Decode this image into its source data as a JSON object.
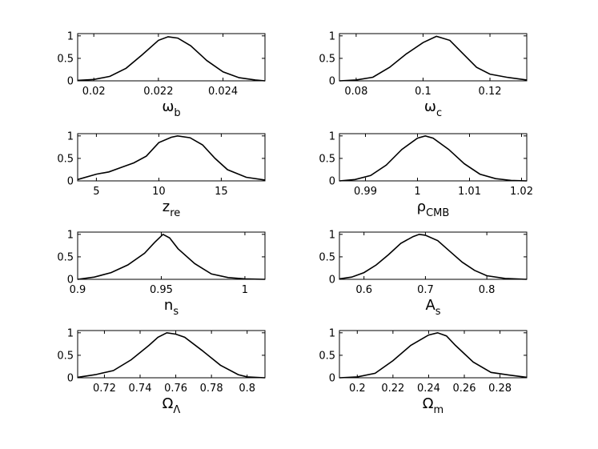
{
  "chart_data": [
    {
      "type": "line",
      "xlabel": "ω",
      "xlabel_sub": "b",
      "xlim": [
        0.0195,
        0.0253
      ],
      "ylim": [
        0,
        1.05
      ],
      "xticks": [
        0.02,
        0.022,
        0.024
      ],
      "xtick_labels": [
        "0.02",
        "0.022",
        "0.024"
      ],
      "yticks": [
        0,
        0.5,
        1
      ],
      "ytick_labels": [
        "0",
        "0.5",
        "1"
      ],
      "x": [
        0.0195,
        0.02,
        0.0205,
        0.021,
        0.0215,
        0.022,
        0.0223,
        0.0226,
        0.023,
        0.0235,
        0.024,
        0.0245,
        0.025,
        0.0253
      ],
      "y": [
        0.01,
        0.03,
        0.1,
        0.28,
        0.58,
        0.9,
        0.98,
        0.95,
        0.78,
        0.45,
        0.2,
        0.07,
        0.02,
        0.0
      ]
    },
    {
      "type": "line",
      "xlabel": "ω",
      "xlabel_sub": "c",
      "xlim": [
        0.075,
        0.131
      ],
      "ylim": [
        0,
        1.05
      ],
      "xticks": [
        0.08,
        0.1,
        0.12
      ],
      "xtick_labels": [
        "0.08",
        "0.1",
        "0.12"
      ],
      "yticks": [
        0,
        0.5,
        1
      ],
      "ytick_labels": [
        "0",
        "0.5",
        "1"
      ],
      "x": [
        0.075,
        0.08,
        0.085,
        0.09,
        0.095,
        0.1,
        0.104,
        0.108,
        0.112,
        0.116,
        0.12,
        0.125,
        0.131
      ],
      "y": [
        0.0,
        0.02,
        0.08,
        0.3,
        0.6,
        0.85,
        0.99,
        0.9,
        0.6,
        0.3,
        0.15,
        0.08,
        0.02
      ]
    },
    {
      "type": "line",
      "xlabel": "z",
      "xlabel_sub": "re",
      "xlim": [
        3.5,
        18.5
      ],
      "ylim": [
        0,
        1.05
      ],
      "xticks": [
        5,
        10,
        15
      ],
      "xtick_labels": [
        "5",
        "10",
        "15"
      ],
      "yticks": [
        0,
        0.5,
        1
      ],
      "ytick_labels": [
        "0",
        "0.5",
        "1"
      ],
      "x": [
        3.5,
        5,
        6,
        7,
        8,
        9,
        10,
        11,
        11.5,
        12.5,
        13.5,
        14.5,
        15.5,
        17,
        18.5
      ],
      "y": [
        0.03,
        0.15,
        0.2,
        0.3,
        0.4,
        0.55,
        0.85,
        0.97,
        1.0,
        0.96,
        0.8,
        0.5,
        0.25,
        0.08,
        0.02
      ]
    },
    {
      "type": "line",
      "xlabel": "ρ",
      "xlabel_sub": "CMB",
      "xlim": [
        0.985,
        1.021
      ],
      "ylim": [
        0,
        1.05
      ],
      "xticks": [
        0.99,
        1,
        1.01,
        1.02
      ],
      "xtick_labels": [
        "0.99",
        "1",
        "1.01",
        "1.02"
      ],
      "yticks": [
        0,
        0.5,
        1
      ],
      "ytick_labels": [
        "0",
        "0.5",
        "1"
      ],
      "x": [
        0.985,
        0.988,
        0.991,
        0.994,
        0.997,
        1.0,
        1.0015,
        1.003,
        1.006,
        1.009,
        1.012,
        1.015,
        1.018,
        1.021
      ],
      "y": [
        0.0,
        0.03,
        0.12,
        0.35,
        0.7,
        0.95,
        1.0,
        0.95,
        0.7,
        0.38,
        0.15,
        0.05,
        0.01,
        0.0
      ]
    },
    {
      "type": "line",
      "xlabel": "n",
      "xlabel_sub": "s",
      "xlim": [
        0.9,
        1.012
      ],
      "ylim": [
        0,
        1.05
      ],
      "xticks": [
        0.9,
        0.95,
        1
      ],
      "xtick_labels": [
        "0.9",
        "0.95",
        "1"
      ],
      "yticks": [
        0,
        0.5,
        1
      ],
      "ytick_labels": [
        "0",
        "0.5",
        "1"
      ],
      "x": [
        0.9,
        0.91,
        0.92,
        0.93,
        0.94,
        0.946,
        0.951,
        0.955,
        0.96,
        0.97,
        0.98,
        0.99,
        1.0,
        1.012
      ],
      "y": [
        0.0,
        0.05,
        0.15,
        0.32,
        0.58,
        0.82,
        1.0,
        0.92,
        0.68,
        0.35,
        0.12,
        0.04,
        0.01,
        0.0
      ]
    },
    {
      "type": "line",
      "xlabel": "A",
      "xlabel_sub": "s",
      "xlim": [
        0.56,
        0.865
      ],
      "ylim": [
        0,
        1.05
      ],
      "xticks": [
        0.6,
        0.7,
        0.8
      ],
      "xtick_labels": [
        "0.6",
        "0.7",
        "0.8"
      ],
      "yticks": [
        0,
        0.5,
        1
      ],
      "ytick_labels": [
        "0",
        "0.5",
        "1"
      ],
      "x": [
        0.56,
        0.58,
        0.6,
        0.62,
        0.64,
        0.66,
        0.68,
        0.69,
        0.7,
        0.72,
        0.74,
        0.76,
        0.78,
        0.8,
        0.83,
        0.865
      ],
      "y": [
        0.01,
        0.05,
        0.15,
        0.32,
        0.55,
        0.8,
        0.95,
        1.0,
        0.98,
        0.86,
        0.62,
        0.38,
        0.2,
        0.08,
        0.02,
        0.0
      ]
    },
    {
      "type": "line",
      "xlabel": "Ω",
      "xlabel_sub": "Λ",
      "xlim": [
        0.705,
        0.81
      ],
      "ylim": [
        0,
        1.05
      ],
      "xticks": [
        0.72,
        0.74,
        0.76,
        0.78,
        0.8
      ],
      "xtick_labels": [
        "0.72",
        "0.74",
        "0.76",
        "0.78",
        "0.8"
      ],
      "yticks": [
        0,
        0.5,
        1
      ],
      "ytick_labels": [
        "0",
        "0.5",
        "1"
      ],
      "x": [
        0.705,
        0.715,
        0.725,
        0.735,
        0.745,
        0.75,
        0.755,
        0.76,
        0.765,
        0.775,
        0.785,
        0.795,
        0.8,
        0.81
      ],
      "y": [
        0.01,
        0.07,
        0.16,
        0.4,
        0.72,
        0.9,
        1.0,
        0.97,
        0.9,
        0.6,
        0.28,
        0.07,
        0.02,
        0.0
      ]
    },
    {
      "type": "line",
      "xlabel": "Ω",
      "xlabel_sub": "m",
      "xlim": [
        0.19,
        0.295
      ],
      "ylim": [
        0,
        1.05
      ],
      "xticks": [
        0.2,
        0.22,
        0.24,
        0.26,
        0.28
      ],
      "xtick_labels": [
        "0.2",
        "0.22",
        "0.24",
        "0.26",
        "0.28"
      ],
      "yticks": [
        0,
        0.5,
        1
      ],
      "ytick_labels": [
        "0",
        "0.5",
        "1"
      ],
      "x": [
        0.19,
        0.2,
        0.21,
        0.22,
        0.23,
        0.24,
        0.245,
        0.25,
        0.255,
        0.265,
        0.275,
        0.285,
        0.295
      ],
      "y": [
        0.0,
        0.02,
        0.1,
        0.38,
        0.72,
        0.95,
        1.0,
        0.93,
        0.72,
        0.35,
        0.12,
        0.06,
        0.01
      ]
    }
  ]
}
